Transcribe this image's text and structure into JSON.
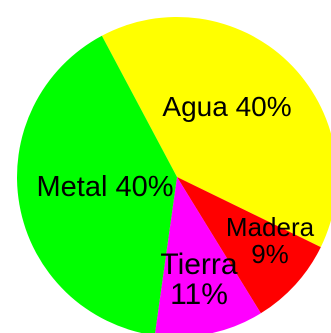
{
  "chart_data": {
    "type": "pie",
    "slices": [
      {
        "name": "Agua",
        "label_lines": [
          "Agua 40%"
        ],
        "value": 40,
        "color": "#ffff00"
      },
      {
        "name": "Madera",
        "label_lines": [
          "Madera",
          "9%"
        ],
        "value": 9,
        "color": "#ff0000"
      },
      {
        "name": "Tierra",
        "label_lines": [
          "Tierra",
          "11%"
        ],
        "value": 11,
        "color": "#ff00ff"
      },
      {
        "name": "Metal",
        "label_lines": [
          "Metal 40%"
        ],
        "value": 40,
        "color": "#00ff00"
      }
    ]
  }
}
